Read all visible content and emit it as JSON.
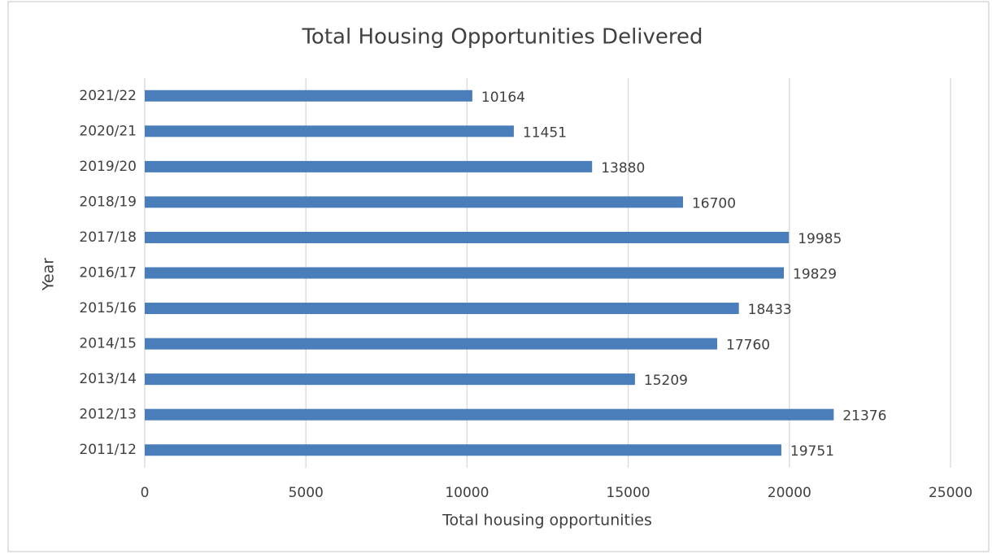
{
  "chart_data": {
    "type": "bar",
    "orientation": "horizontal",
    "title": "Total Housing Opportunities Delivered",
    "x_label": "Total housing opportunities",
    "y_label": "Year",
    "categories": [
      "2011/12",
      "2012/13",
      "2013/14",
      "2014/15",
      "2015/16",
      "2016/17",
      "2017/18",
      "2018/19",
      "2019/20",
      "2020/21",
      "2021/22"
    ],
    "values": [
      19751,
      21376,
      15209,
      17760,
      18433,
      19829,
      19985,
      16700,
      13880,
      11451,
      10164
    ],
    "color": "#4a7ebb",
    "xlim": [
      0,
      25000
    ],
    "xticks": [
      0,
      5000,
      10000,
      15000,
      20000,
      25000
    ],
    "grid": true
  }
}
